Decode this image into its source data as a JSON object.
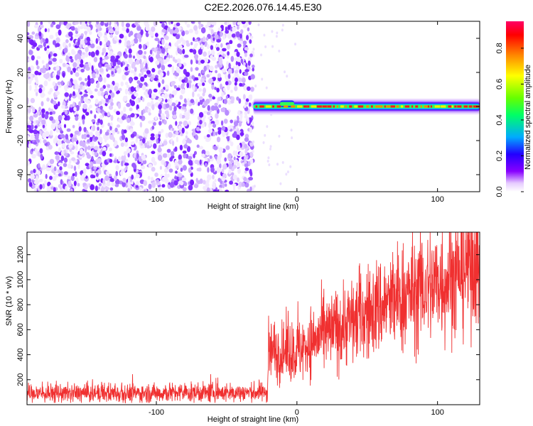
{
  "title": "C2E2.2026.076.14.45.E30",
  "chart_data": [
    {
      "type": "heatmap",
      "xlabel": "Height of straight line (km)",
      "ylabel": "Frequency (Hz)",
      "xlim": [
        -192,
        130
      ],
      "ylim": [
        -50,
        50
      ],
      "xticks": [
        -100,
        0,
        100
      ],
      "xtick_labels": [
        "-100",
        "0",
        "100"
      ],
      "yticks": [
        -40,
        -20,
        0,
        20,
        40
      ],
      "ytick_labels": [
        "-40",
        "-20",
        "0",
        "20",
        "40"
      ],
      "grid": false,
      "noise_region_x": [
        -192,
        -31
      ],
      "signal_x_start": -31,
      "signal_frequency": 0,
      "signal_halfwidth": 2,
      "colorbar": {
        "label": "Normalized spectral amplitude",
        "range": [
          0,
          0.95
        ],
        "ticks": [
          0,
          0.2,
          0.4,
          0.6,
          0.8
        ],
        "tick_labels": [
          "0.0",
          "0.2",
          "0.4",
          "0.6",
          "0.8"
        ],
        "colormap": [
          "#ffffff",
          "#e6ccff",
          "#8800ff",
          "#2200ff",
          "#00aaff",
          "#00ff66",
          "#66ff00",
          "#ffff00",
          "#ff8800",
          "#ff0000",
          "#ff0066"
        ]
      }
    },
    {
      "type": "line",
      "xlabel": "Height of straight line (km)",
      "ylabel": "SNR (10 * v/v)",
      "xlim": [
        -192,
        130
      ],
      "ylim": [
        0,
        1380
      ],
      "xticks": [
        -100,
        0,
        100
      ],
      "xtick_labels": [
        "-100",
        "0",
        "100"
      ],
      "yticks": [
        200,
        400,
        600,
        800,
        1000,
        1200
      ],
      "ytick_labels": [
        "200",
        "400",
        "600",
        "800",
        "1000",
        "1200"
      ],
      "grid": false,
      "series": [
        {
          "color": "#f03030",
          "x": [
            -192,
            -170,
            -150,
            -130,
            -110,
            -90,
            -70,
            -50,
            -30,
            -21,
            -20,
            -15,
            -10,
            -5,
            0,
            10,
            20,
            30,
            40,
            50,
            60,
            70,
            80,
            90,
            100,
            110,
            120,
            130
          ],
          "y": [
            90,
            90,
            90,
            92,
            92,
            94,
            95,
            96,
            98,
            100,
            450,
            430,
            410,
            440,
            420,
            500,
            560,
            620,
            680,
            730,
            790,
            840,
            880,
            930,
            970,
            1030,
            1100,
            1200
          ]
        }
      ]
    }
  ]
}
